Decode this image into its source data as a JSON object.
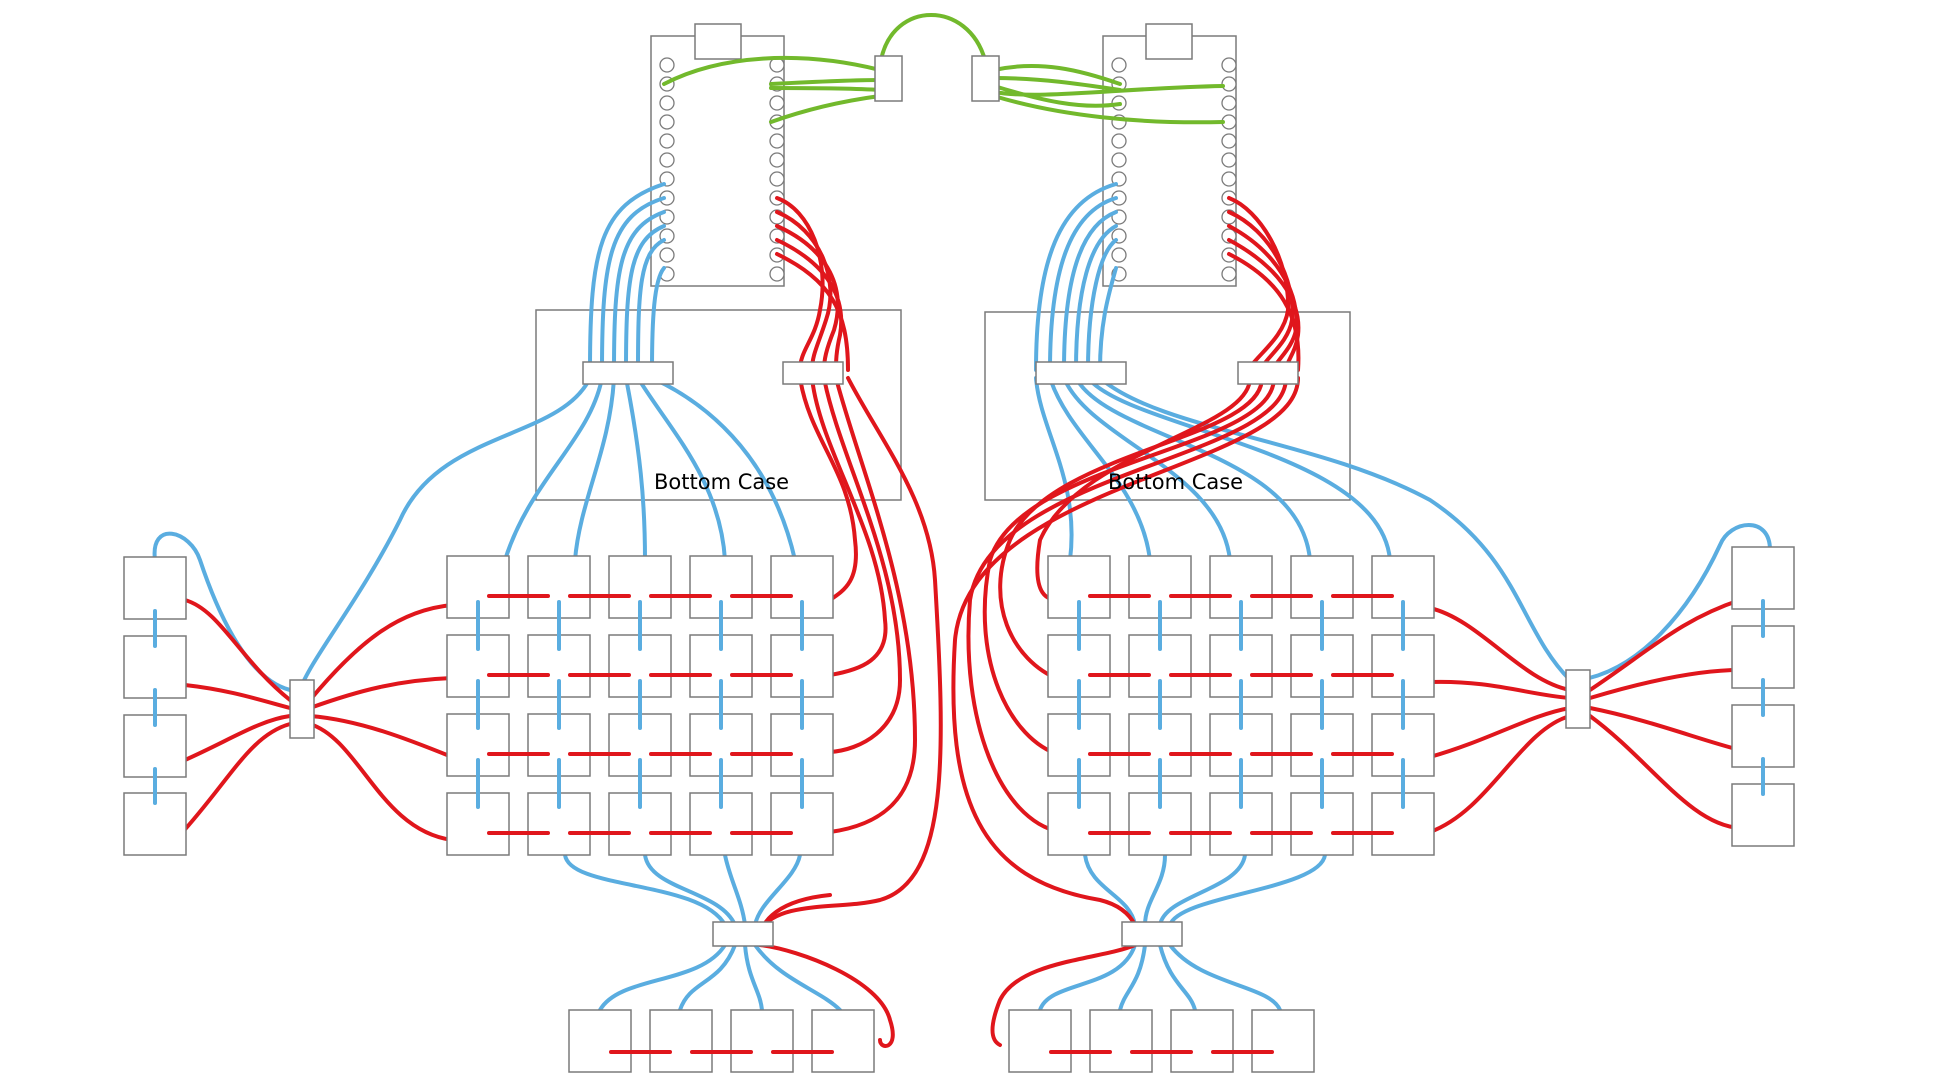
{
  "colors": {
    "row_wire": "#e0161c",
    "column_wire": "#5aade0",
    "link_wire": "#72b92c",
    "outline": "#7a7a7a"
  },
  "labels": {
    "left_case": "Bottom Case",
    "right_case": "Bottom Case"
  }
}
